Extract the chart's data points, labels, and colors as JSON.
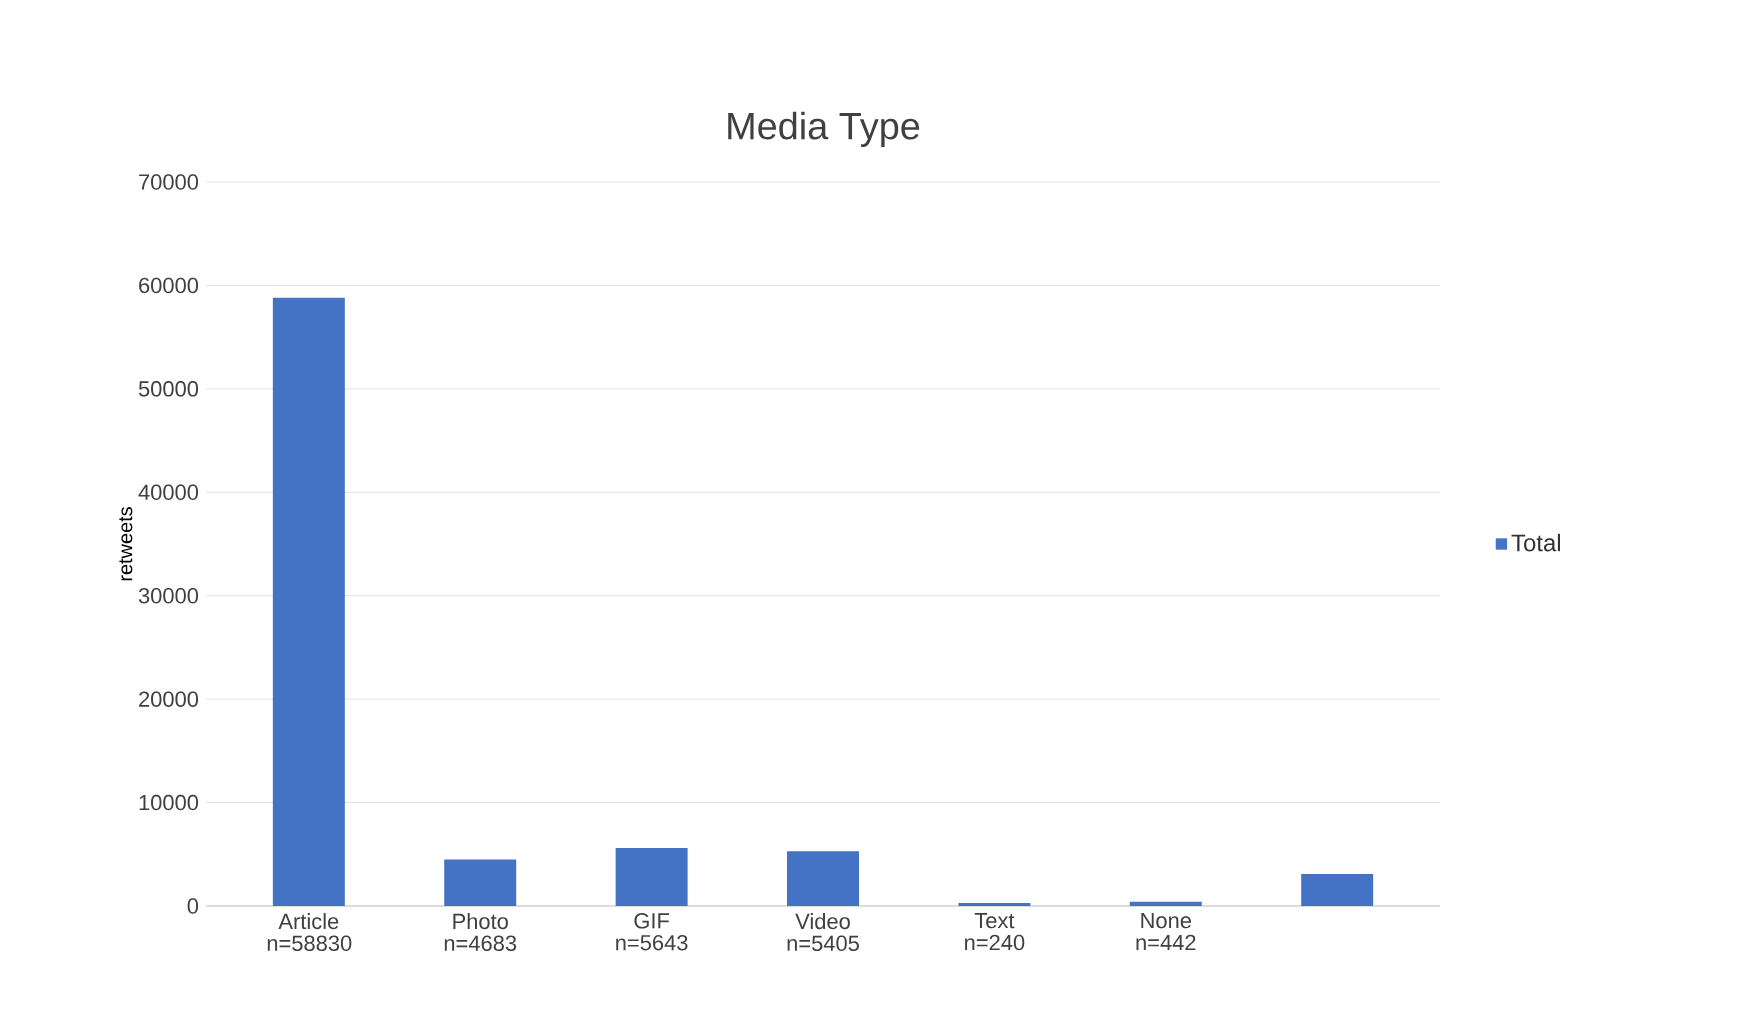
{
  "chart_data": {
    "type": "bar",
    "title": "Media Type",
    "ylabel": "retweets",
    "categories": [
      "Article n=58830",
      "Photo n=4683",
      "GIF n=5643",
      "Video n=5405",
      "Text n=240",
      "None n=442",
      null
    ],
    "series": [
      {
        "name": "Total",
        "color": "#4472c4",
        "values": [
          58800,
          4500,
          5600,
          5300,
          300,
          400,
          3100
        ]
      }
    ],
    "ylim": [
      0,
      70000
    ],
    "yticks": [
      0,
      10000,
      20000,
      30000,
      40000,
      50000,
      60000,
      70000
    ],
    "grid": "y",
    "legend": "right"
  }
}
